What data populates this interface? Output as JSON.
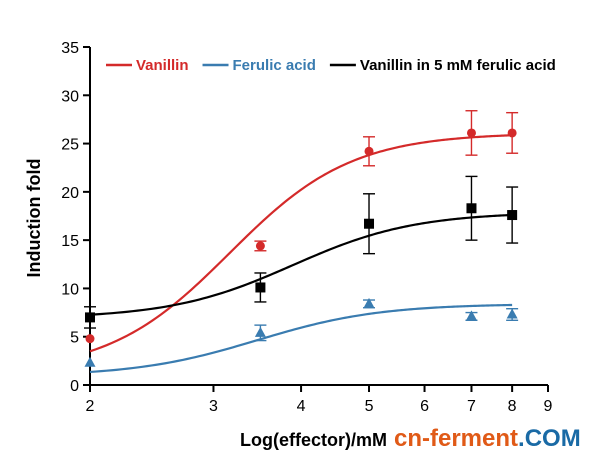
{
  "chart_data": {
    "type": "scatter",
    "xlabel": "Log(effector)/mM",
    "ylabel": "Induction fold",
    "xlim": [
      2,
      9
    ],
    "ylim": [
      0,
      35
    ],
    "x_scale": "log",
    "xticks": [
      2,
      3,
      4,
      5,
      6,
      7,
      8,
      9
    ],
    "yticks": [
      0,
      5,
      10,
      15,
      20,
      25,
      30,
      35
    ],
    "grid": false,
    "legend_position": "top",
    "series": [
      {
        "name": "Vanillin",
        "color": "#d42a2a",
        "marker": "circle",
        "points": [
          {
            "x": 2,
            "y": 4.8,
            "err": 0
          },
          {
            "x": 3.5,
            "y": 14.4,
            "err": 0.5
          },
          {
            "x": 5,
            "y": 24.2,
            "err": 1.5
          },
          {
            "x": 7,
            "y": 26.1,
            "err": 2.3
          },
          {
            "x": 8,
            "y": 26.1,
            "err": 2.1
          }
        ],
        "fit": {
          "bottom": 1.2,
          "top": 26.1,
          "log_ec50": 0.5,
          "hill": 5.0
        }
      },
      {
        "name": "Ferulic acid",
        "color": "#3a7cb0",
        "marker": "triangle",
        "points": [
          {
            "x": 2,
            "y": 2.3,
            "err": 0
          },
          {
            "x": 3.5,
            "y": 5.4,
            "err": 0.8
          },
          {
            "x": 5,
            "y": 8.4,
            "err": 0.4
          },
          {
            "x": 7,
            "y": 7.1,
            "err": 0.4
          },
          {
            "x": 8,
            "y": 7.3,
            "err": 0.6
          }
        ],
        "fit": {
          "bottom": 0.9,
          "top": 8.4,
          "log_ec50": 0.54,
          "hill": 5.0
        }
      },
      {
        "name": "Vanillin in 5 mM ferulic acid",
        "color": "#000000",
        "marker": "square",
        "points": [
          {
            "x": 2,
            "y": 7.0,
            "err": 1.1
          },
          {
            "x": 3.5,
            "y": 10.1,
            "err": 1.5
          },
          {
            "x": 5,
            "y": 16.7,
            "err": 3.1
          },
          {
            "x": 7,
            "y": 18.3,
            "err": 3.3
          },
          {
            "x": 8,
            "y": 17.6,
            "err": 2.9
          }
        ],
        "fit": {
          "bottom": 6.9,
          "top": 17.9,
          "log_ec50": 0.59,
          "hill": 5.0
        }
      }
    ]
  },
  "watermark": {
    "part1": "cn-ferment",
    "part2": ".COM",
    "color1": "#e05a17",
    "color2": "#1a6aa5"
  }
}
